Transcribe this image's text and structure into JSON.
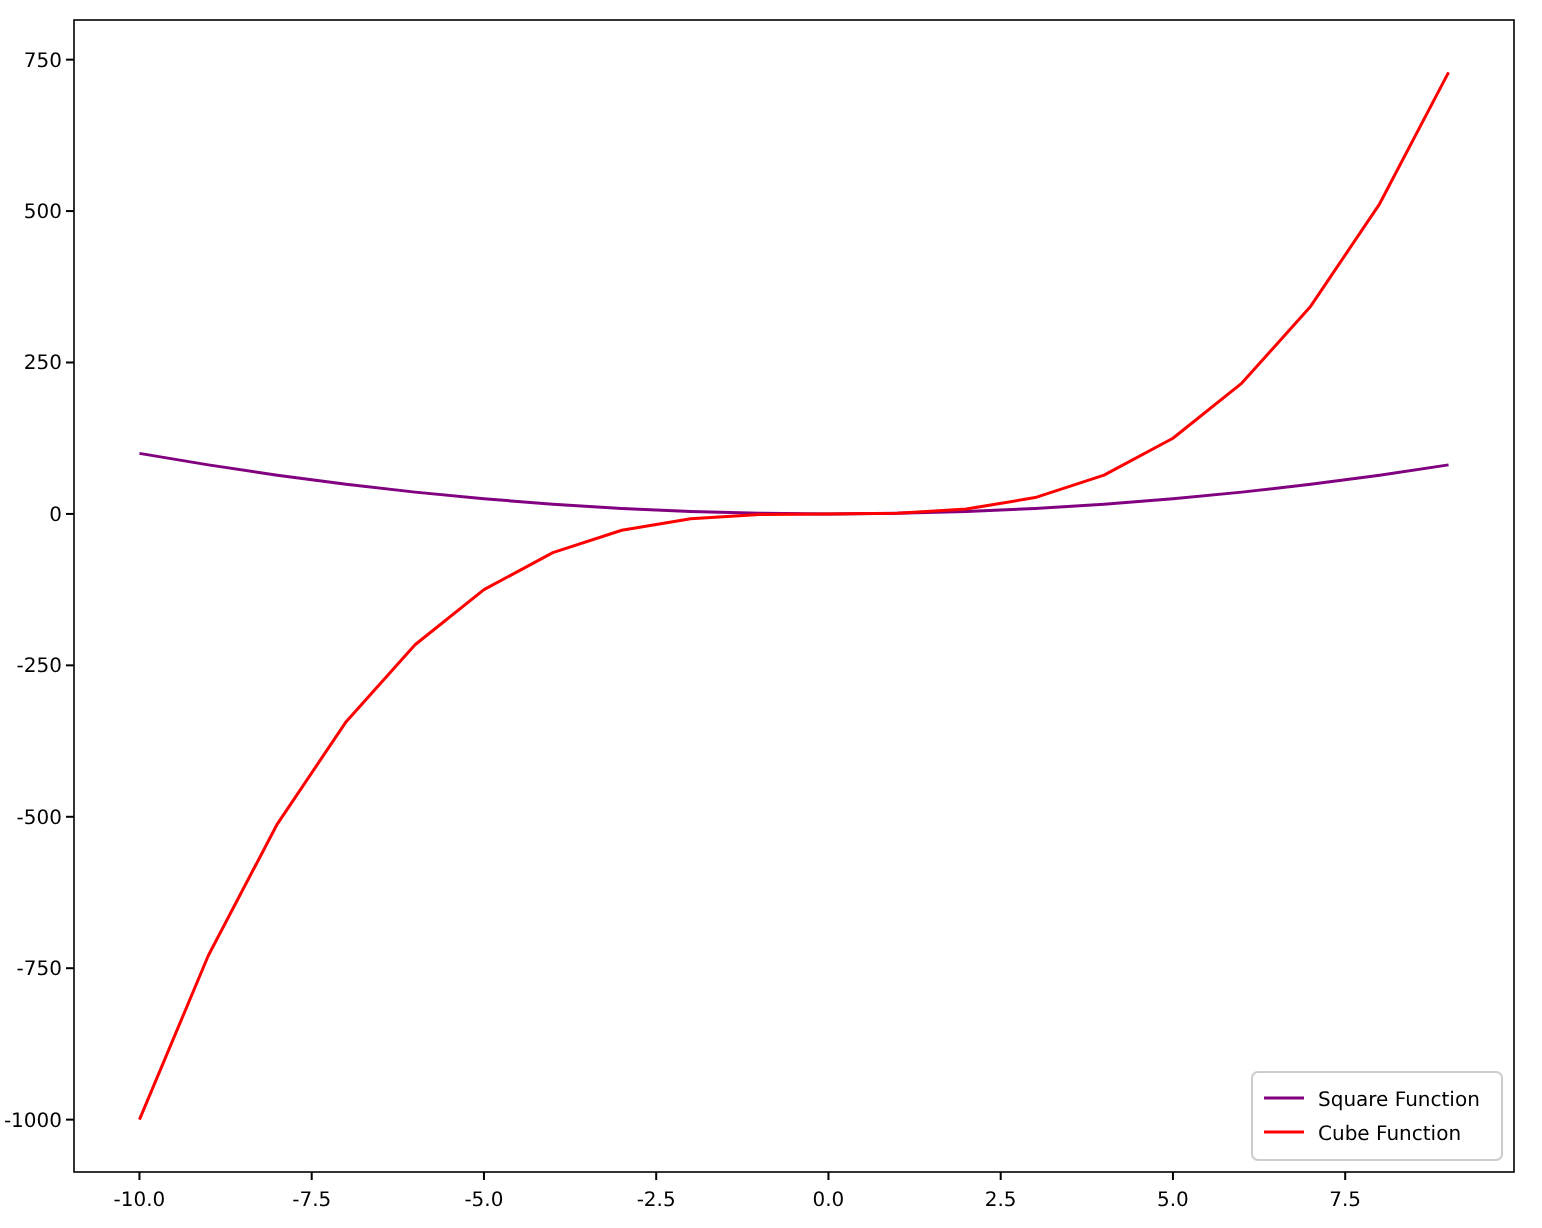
{
  "chart_data": {
    "type": "line",
    "x": [
      -10,
      -9,
      -8,
      -7,
      -6,
      -5,
      -4,
      -3,
      -2,
      -1,
      0,
      1,
      2,
      3,
      4,
      5,
      6,
      7,
      8,
      9
    ],
    "series": [
      {
        "name": "Square Function",
        "color": "#800080",
        "values": [
          100,
          81,
          64,
          49,
          36,
          25,
          16,
          9,
          4,
          1,
          0,
          1,
          4,
          9,
          16,
          25,
          36,
          49,
          64,
          81
        ]
      },
      {
        "name": "Cube Function",
        "color": "#ff0000",
        "values": [
          -1000,
          -729,
          -512,
          -343,
          -216,
          -125,
          -64,
          -27,
          -8,
          -1,
          0,
          1,
          8,
          27,
          64,
          125,
          216,
          343,
          512,
          729
        ]
      }
    ],
    "xlim": [
      -10.95,
      9.95
    ],
    "ylim": [
      -1086.45,
      815.45
    ],
    "xticks": [
      {
        "value": -10,
        "label": "-10.0"
      },
      {
        "value": -7.5,
        "label": "-7.5"
      },
      {
        "value": -5,
        "label": "-5.0"
      },
      {
        "value": -2.5,
        "label": "-2.5"
      },
      {
        "value": 0,
        "label": "0.0"
      },
      {
        "value": 2.5,
        "label": "2.5"
      },
      {
        "value": 5,
        "label": "5.0"
      },
      {
        "value": 7.5,
        "label": "7.5"
      }
    ],
    "yticks": [
      {
        "value": -1000,
        "label": "-1000"
      },
      {
        "value": -750,
        "label": "-750"
      },
      {
        "value": -500,
        "label": "-500"
      },
      {
        "value": -250,
        "label": "-250"
      },
      0,
      250,
      500,
      750
    ],
    "legend": "bottom right",
    "marker": "none",
    "line_style": "solid",
    "grid": false
  }
}
